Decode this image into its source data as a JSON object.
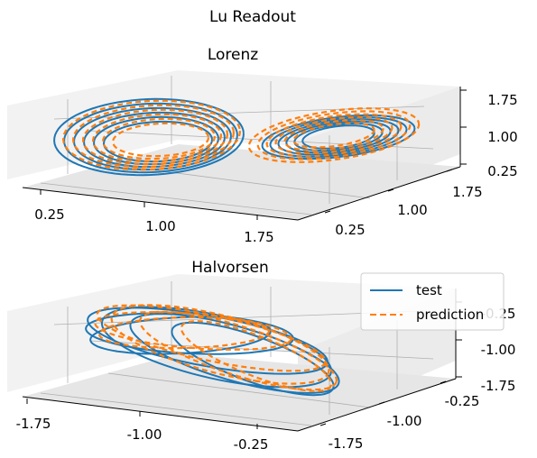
{
  "figure": {
    "suptitle": "Lu Readout",
    "colors": {
      "test": "#1f77b4",
      "prediction": "#ff7f0e"
    }
  },
  "chart_data": [
    {
      "type": "line",
      "projection": "3d",
      "title": "Lorenz",
      "grid": true,
      "series": [
        {
          "name": "test",
          "style": "solid",
          "color": "#1f77b4"
        },
        {
          "name": "prediction",
          "style": "dashed",
          "color": "#ff7f0e"
        }
      ],
      "x_ticks": [
        "0.25",
        "1.00",
        "1.75"
      ],
      "y_ticks": [
        "0.25",
        "1.00",
        "1.75"
      ],
      "z_ticks": [
        "0.25",
        "1.00",
        "1.75"
      ],
      "xlim": [
        0.25,
        1.75
      ],
      "ylim": [
        0.25,
        1.75
      ],
      "zlim": [
        0.25,
        1.75
      ]
    },
    {
      "type": "line",
      "projection": "3d",
      "title": "Halvorsen",
      "grid": true,
      "legend": {
        "position": "top-right",
        "entries": [
          "test",
          "prediction"
        ]
      },
      "series": [
        {
          "name": "test",
          "style": "solid",
          "color": "#1f77b4"
        },
        {
          "name": "prediction",
          "style": "dashed",
          "color": "#ff7f0e"
        }
      ],
      "x_ticks": [
        "-1.75",
        "-1.00",
        "-0.25"
      ],
      "y_ticks": [
        "-1.75",
        "-1.00",
        "-0.25"
      ],
      "z_ticks": [
        "-1.75",
        "-1.00",
        "-0.25"
      ],
      "xlim": [
        -1.75,
        -0.25
      ],
      "ylim": [
        -1.75,
        -0.25
      ],
      "zlim": [
        -1.75,
        -0.25
      ]
    }
  ]
}
